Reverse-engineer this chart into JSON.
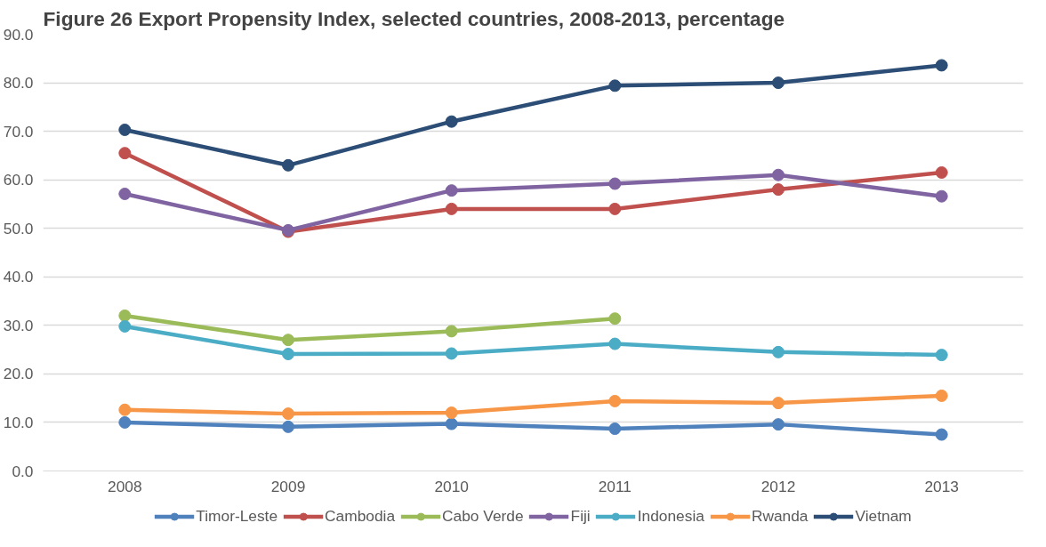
{
  "chart_data": {
    "type": "line",
    "title": "Figure 26 Export Propensity Index, selected countries, 2008-2013, percentage",
    "categories": [
      "2008",
      "2009",
      "2010",
      "2011",
      "2012",
      "2013"
    ],
    "series": [
      {
        "name": "Timor-Leste",
        "color": "#4f81bd",
        "values": [
          10.0,
          9.1,
          9.7,
          8.7,
          9.6,
          7.5
        ]
      },
      {
        "name": "Cambodia",
        "color": "#c0504d",
        "values": [
          65.5,
          49.3,
          54.0,
          54.0,
          58.0,
          61.5
        ]
      },
      {
        "name": "Cabo Verde",
        "color": "#9bbb59",
        "values": [
          32.0,
          27.0,
          28.8,
          31.4,
          null,
          null
        ]
      },
      {
        "name": "Fiji",
        "color": "#8064a2",
        "values": [
          57.1,
          49.6,
          57.8,
          59.2,
          61.0,
          56.6
        ]
      },
      {
        "name": "Indonesia",
        "color": "#4bacc6",
        "values": [
          29.8,
          24.1,
          24.2,
          26.2,
          24.5,
          23.9
        ]
      },
      {
        "name": "Rwanda",
        "color": "#f79646",
        "values": [
          12.6,
          11.8,
          12.0,
          14.4,
          14.0,
          15.5
        ]
      },
      {
        "name": "Vietnam",
        "color": "#2c4d75",
        "values": [
          70.3,
          63.0,
          72.0,
          79.4,
          80.0,
          83.6
        ]
      }
    ],
    "ylim": [
      0,
      90
    ],
    "yticks": [
      {
        "value": 0,
        "label": "0.0"
      },
      {
        "value": 10,
        "label": "10.0"
      },
      {
        "value": 20,
        "label": "20.0"
      },
      {
        "value": 30,
        "label": "30.0"
      },
      {
        "value": 40,
        "label": "40.0"
      },
      {
        "value": 50,
        "label": "50.0"
      },
      {
        "value": 60,
        "label": "60.0"
      },
      {
        "value": 70,
        "label": "70.0"
      },
      {
        "value": 80,
        "label": "80.0"
      },
      {
        "value": 90,
        "label": "90.0"
      }
    ],
    "grid": "y",
    "legend": "bottom",
    "marker": "circle",
    "line_style": "solid"
  }
}
